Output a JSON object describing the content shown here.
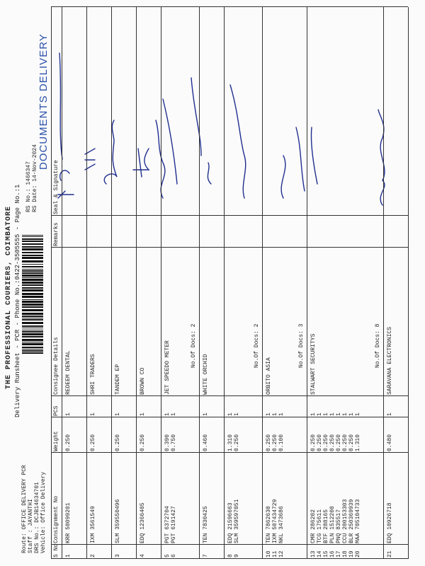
{
  "header": {
    "company": "THE PROFESSIONAL COURIERS, COIMBATORE",
    "runsheet": "Delivery Runsheet - PCR - Phone No.:0422-3505555 - Page No.:1",
    "route": "Route: OFFICE DELIVERY PCR",
    "staff": "Staff : JAYANTHI",
    "drs_no": "DRS No.: DCJB14634701",
    "vehicle": "Vehicle: Office Delivery",
    "rs_no": "RS No.: 1466347",
    "rs_date": "RS Date: 14-Nov-2024",
    "section": "DOCUMENTS DELIVERY"
  },
  "table": {
    "columns": [
      "S No",
      "Consignment No",
      "Weight",
      "PCS",
      "Consignee Details",
      "Remarks",
      "Seal & Signature"
    ],
    "groups": [
      {
        "rows": [
          [
            "1",
            "KRR 50099201",
            "0.250",
            "1"
          ]
        ],
        "consignee": "REDEEM DENTAL"
      },
      {
        "rows": [
          [
            "2",
            "IXM 3561549",
            "0.250",
            "1"
          ]
        ],
        "consignee": "SHRI TRADERS"
      },
      {
        "rows": [
          [
            "3",
            "SLM 359550496",
            "0.250",
            "1"
          ]
        ],
        "consignee": "TANDEM EP"
      },
      {
        "rows": [
          [
            "4",
            "EDQ 12366405",
            "0.250",
            "1"
          ]
        ],
        "consignee": "BROWN CO"
      },
      {
        "rows": [
          [
            "5",
            "PGT 6372704",
            "0.390",
            "1"
          ],
          [
            "6",
            "PGT 6191427",
            "0.750",
            "1"
          ]
        ],
        "consignee": "JET SPEEDO METER",
        "docs": "No.Of Docs: 2"
      },
      {
        "rows": [
          [
            "7",
            "TEN 7830425",
            "0.460",
            "1"
          ]
        ],
        "consignee": "WHITE ORCHID"
      },
      {
        "rows": [
          [
            "8",
            "EDQ 21596663",
            "1.310",
            "1"
          ],
          [
            "9",
            "SLM 359597051",
            "0.250",
            "1"
          ]
        ],
        "docs": "No.Of Docs: 2"
      },
      {
        "rows": [
          [
            "10",
            "TEN 7862630",
            "0.250",
            "1"
          ],
          [
            "11",
            "IXM 507434729",
            "0.250",
            "1"
          ],
          [
            "12",
            "NKL 3473686",
            "0.100",
            "1"
          ]
        ],
        "consignee": "ORBITO ASIA",
        "docs": "No.Of Docs: 3"
      },
      {
        "rows": [
          [
            "13",
            "CMR 286202",
            "0.250",
            "1"
          ],
          [
            "14",
            "TCG 175611",
            "0.250",
            "1"
          ],
          [
            "15",
            "BTF 288165",
            "0.250",
            "1"
          ],
          [
            "16",
            "PLN 1512200",
            "0.250",
            "1"
          ],
          [
            "17",
            "PNQ 835517",
            "0.250",
            "1"
          ],
          [
            "18",
            "CCU 200153303",
            "0.250",
            "1"
          ],
          [
            "19",
            "BLR 250369939",
            "0.250",
            "1"
          ],
          [
            "20",
            "MAA 705104733",
            "1.310",
            "1"
          ]
        ],
        "consignee": "STALWART SECURITYS",
        "docs": "No.Of Docs: 8"
      },
      {
        "rows": [
          [
            "21",
            "EDQ 10926718",
            "0.480",
            "1"
          ]
        ],
        "consignee": "SARAVANA ELECTRONICS"
      }
    ]
  }
}
